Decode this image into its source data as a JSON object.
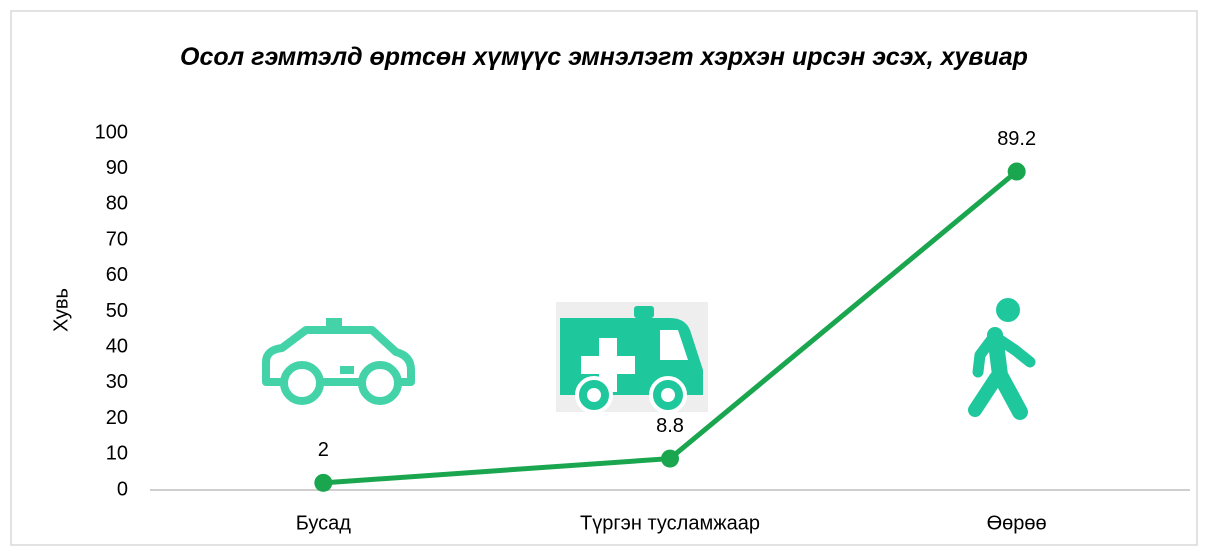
{
  "chart_data": {
    "type": "line",
    "title": "Осол гэмтэлд өртсөн  хүмүүс эмнэлэгт хэрхэн ирсэн эсэх, хувиар",
    "y_label": "Хувь",
    "categories": [
      "Бусад",
      "Түргэн тусламжаар",
      "Өөрөө"
    ],
    "series": [
      {
        "name": "Хувь",
        "color": "#1aa64f",
        "values": [
          2,
          8.8,
          89.2
        ]
      }
    ],
    "ylim": [
      0,
      100
    ],
    "yticks": [
      0,
      10,
      20,
      30,
      40,
      50,
      60,
      70,
      80,
      90,
      100
    ],
    "grid": false
  }
}
